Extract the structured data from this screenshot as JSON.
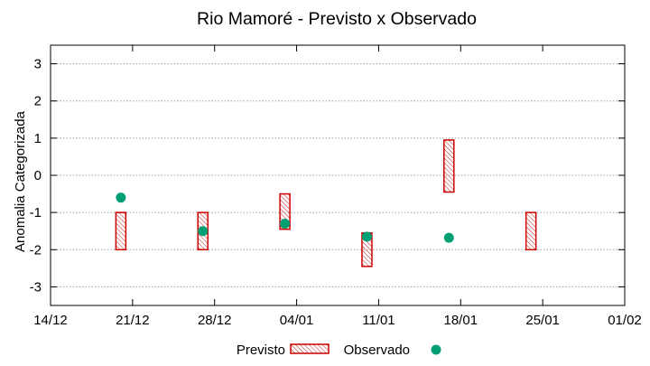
{
  "chart_data": {
    "type": "range-scatter",
    "title": "Rio Mamoré - Previsto x Observado",
    "xlabel": "",
    "ylabel": "Anomalia Categorizada",
    "x_tick_labels": [
      "14/12",
      "21/12",
      "28/12",
      "04/01",
      "11/01",
      "18/01",
      "25/01",
      "01/02"
    ],
    "x_tick_dates": [
      "2020-12-14",
      "2020-12-21",
      "2020-12-28",
      "2021-01-04",
      "2021-01-11",
      "2021-01-18",
      "2021-01-25",
      "2021-02-01"
    ],
    "xlim": [
      "2020-12-14",
      "2021-02-01"
    ],
    "ylim": [
      -3.5,
      3.5
    ],
    "y_ticks": [
      -3,
      -2,
      -1,
      0,
      1,
      2,
      3
    ],
    "grid": "horizontal dotted",
    "legend": {
      "placement": "bottom-center",
      "entries": [
        "Previsto",
        "Observado"
      ]
    },
    "series": [
      {
        "name": "Previsto",
        "style": "hatched-range-box",
        "color": "#cc0000",
        "points": [
          {
            "x": "2020-12-20",
            "low": -2.0,
            "high": -1.0
          },
          {
            "x": "2020-12-27",
            "low": -2.0,
            "high": -1.0
          },
          {
            "x": "2021-01-03",
            "low": -1.45,
            "high": -0.5
          },
          {
            "x": "2021-01-10",
            "low": -2.45,
            "high": -1.55
          },
          {
            "x": "2021-01-17",
            "low": -0.45,
            "high": 0.95
          },
          {
            "x": "2021-01-24",
            "low": -2.0,
            "high": -1.0
          }
        ]
      },
      {
        "name": "Observado",
        "style": "filled-circle",
        "color": "#009e73",
        "points": [
          {
            "x": "2020-12-20",
            "y": -0.6
          },
          {
            "x": "2020-12-27",
            "y": -1.5
          },
          {
            "x": "2021-01-03",
            "y": -1.3
          },
          {
            "x": "2021-01-10",
            "y": -1.65
          },
          {
            "x": "2021-01-17",
            "y": -1.68
          }
        ]
      }
    ]
  }
}
